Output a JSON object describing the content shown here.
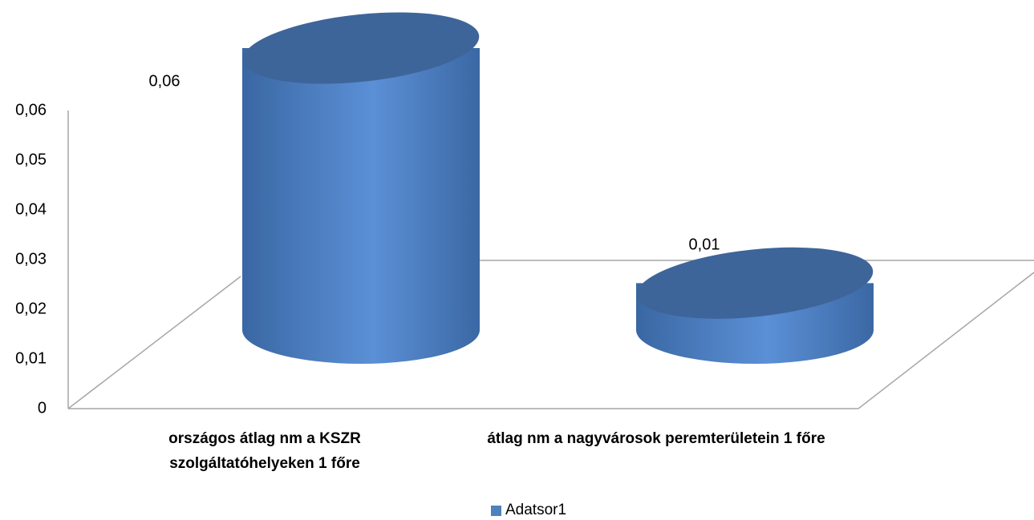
{
  "chart_data": {
    "type": "cylinder",
    "categories": [
      "országos átlag nm a KSZR szolgáltatóhelyeken 1 főre",
      "átlag nm a nagyvárosok peremterületein 1 főre"
    ],
    "series": [
      {
        "name": "Adatsor1",
        "color": "#4f81bd",
        "values": [
          0.06,
          0.01
        ],
        "value_labels": [
          "0,06",
          "0,01"
        ]
      }
    ],
    "ylim": [
      0,
      0.06
    ],
    "yticks": [
      0,
      {
        "value": 0.01,
        "label": "0,01"
      },
      {
        "value": 0.02,
        "label": "0,02"
      },
      {
        "value": 0.03,
        "label": "0,03"
      },
      {
        "value": 0.04,
        "label": "0,04"
      },
      {
        "value": 0.05,
        "label": "0,05"
      },
      {
        "value": 0.06,
        "label": "0,06"
      }
    ],
    "legend": "bottom"
  }
}
